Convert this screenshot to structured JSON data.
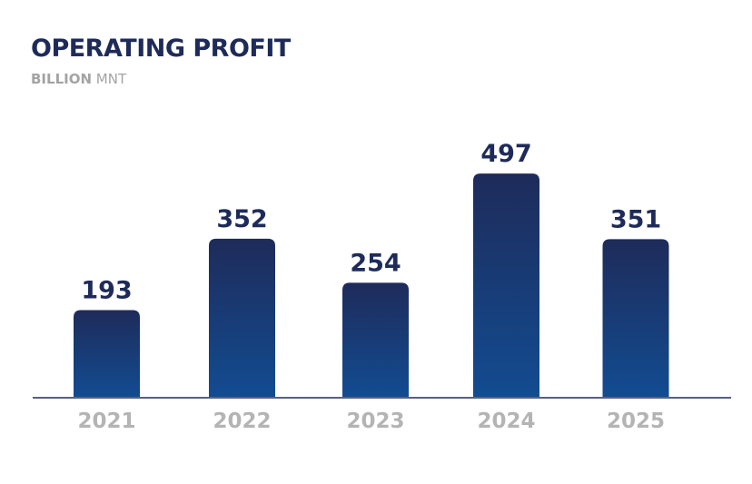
{
  "header": {
    "title": "OPERATING PROFIT",
    "subtitle_bold": "BILLION",
    "subtitle_rest": " MNT"
  },
  "colors": {
    "title": "#1e2b5a",
    "subtitle": "#a3a3a3",
    "bar_top": "#1e2b5a",
    "bar_bottom": "#124c91",
    "axis_line": "#1e2b5a",
    "tick_label": "#b4b4b4",
    "value_label": "#1e2b5a"
  },
  "chart_data": {
    "type": "bar",
    "title": "OPERATING PROFIT",
    "subtitle": "BILLION MNT",
    "categories": [
      "2021",
      "2022",
      "2023",
      "2024",
      "2025"
    ],
    "values": [
      193,
      352,
      254,
      497,
      351
    ],
    "data_labels": [
      "193",
      "352",
      "254",
      "497",
      "351"
    ],
    "xlabel": "",
    "ylabel": "",
    "ylim": [
      0,
      540
    ],
    "grid": false,
    "legend": "none"
  }
}
